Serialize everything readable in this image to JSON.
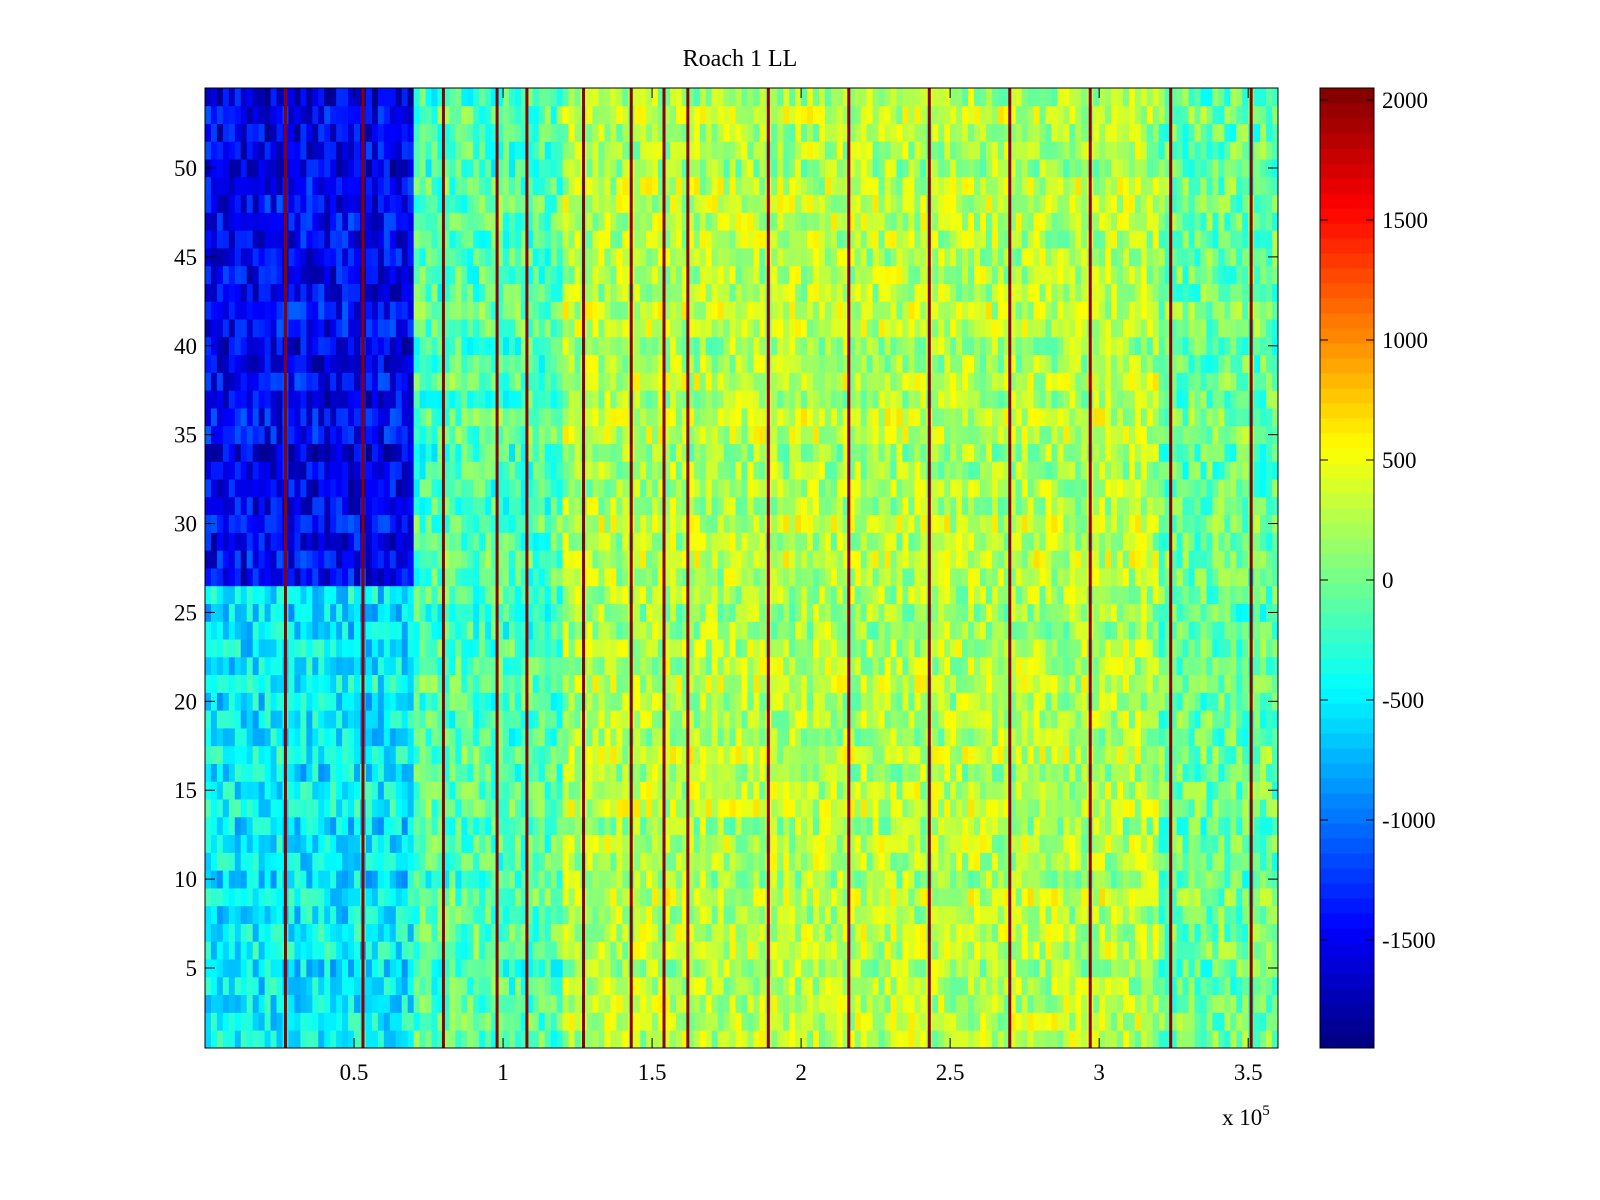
{
  "chart_data": {
    "type": "heatmap",
    "title": "Roach 1 LL",
    "xlabel": "",
    "ylabel": "",
    "x_multiplier_prefix": "x 10",
    "x_multiplier_exponent": "5",
    "x_range": [
      0,
      3.6
    ],
    "y_range": [
      0.5,
      54.5
    ],
    "rows": 54,
    "x_ticks": [
      {
        "value": 0.5,
        "label": "0.5"
      },
      {
        "value": 1,
        "label": "1"
      },
      {
        "value": 1.5,
        "label": "1.5"
      },
      {
        "value": 2,
        "label": "2"
      },
      {
        "value": 2.5,
        "label": "2.5"
      },
      {
        "value": 3,
        "label": "3"
      },
      {
        "value": 3.5,
        "label": "3.5"
      }
    ],
    "y_ticks": [
      {
        "value": 5,
        "label": "5"
      },
      {
        "value": 10,
        "label": "10"
      },
      {
        "value": 15,
        "label": "15"
      },
      {
        "value": 20,
        "label": "20"
      },
      {
        "value": 25,
        "label": "25"
      },
      {
        "value": 30,
        "label": "30"
      },
      {
        "value": 35,
        "label": "35"
      },
      {
        "value": 40,
        "label": "40"
      },
      {
        "value": 45,
        "label": "45"
      },
      {
        "value": 50,
        "label": "50"
      }
    ],
    "colorbar": {
      "colormap": "jet",
      "range": [
        -1950,
        2050
      ],
      "ticks": [
        {
          "value": 2000,
          "label": "2000"
        },
        {
          "value": 1500,
          "label": "1500"
        },
        {
          "value": 1000,
          "label": "1000"
        },
        {
          "value": 500,
          "label": "500"
        },
        {
          "value": 0,
          "label": "0"
        },
        {
          "value": -500,
          "label": "-500"
        },
        {
          "value": -1000,
          "label": "-1000"
        },
        {
          "value": -1500,
          "label": "-1500"
        }
      ]
    },
    "vertical_stripes_x": [
      0.27,
      0.53,
      0.8,
      0.98,
      1.08,
      1.27,
      1.43,
      1.54,
      1.62,
      1.89,
      2.16,
      2.43,
      2.7,
      2.97,
      3.24,
      3.51
    ],
    "approx_region_means": [
      {
        "x_from": 0,
        "x_to": 0.7,
        "y_from": 27,
        "y_to": 54,
        "value": -1500
      },
      {
        "x_from": 0,
        "x_to": 0.7,
        "y_from": 1,
        "y_to": 26,
        "value": -500
      },
      {
        "x_from": 0.7,
        "x_to": 1.2,
        "y_from": 1,
        "y_to": 54,
        "value": -150
      },
      {
        "x_from": 1.2,
        "x_to": 3.2,
        "y_from": 1,
        "y_to": 54,
        "value": 250
      },
      {
        "x_from": 3.2,
        "x_to": 3.6,
        "y_from": 1,
        "y_to": 54,
        "value": -50
      }
    ]
  }
}
